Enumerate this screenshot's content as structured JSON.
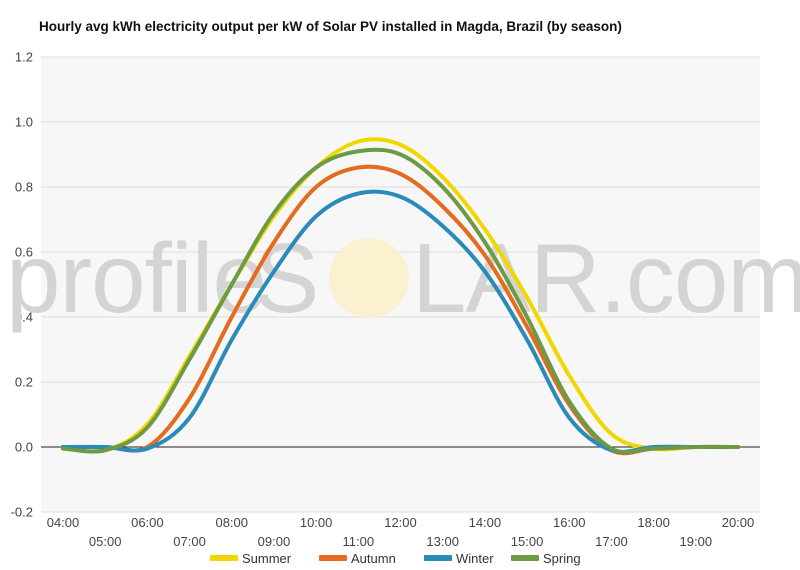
{
  "chart_data": {
    "type": "line",
    "title": "Hourly avg kWh electricity output per kW of Solar PV installed in Magda, Brazil (by season)",
    "xlabel": "",
    "ylabel": "",
    "x": [
      "04:00",
      "05:00",
      "06:00",
      "07:00",
      "08:00",
      "09:00",
      "10:00",
      "11:00",
      "12:00",
      "13:00",
      "14:00",
      "15:00",
      "16:00",
      "17:00",
      "18:00",
      "19:00",
      "20:00"
    ],
    "ylim": [
      -0.2,
      1.2
    ],
    "yticks": [
      "-0.2",
      "0.0",
      "0.2",
      "0.4",
      "0.6",
      "0.8",
      "1.0",
      "1.2"
    ],
    "grid": true,
    "legend_position": "bottom",
    "series": [
      {
        "name": "Summer",
        "color": "#f2d600",
        "values": [
          0,
          -0.01,
          0.07,
          0.28,
          0.5,
          0.71,
          0.86,
          0.94,
          0.93,
          0.83,
          0.67,
          0.46,
          0.22,
          0.04,
          -0.005,
          0,
          0
        ]
      },
      {
        "name": "Autumn",
        "color": "#e46b1f",
        "values": [
          0,
          0,
          0,
          0.15,
          0.4,
          0.63,
          0.8,
          0.86,
          0.84,
          0.74,
          0.59,
          0.37,
          0.13,
          -0.01,
          -0.005,
          0,
          0
        ]
      },
      {
        "name": "Winter",
        "color": "#2a8ab8",
        "values": [
          0,
          0,
          -0.005,
          0.09,
          0.33,
          0.54,
          0.71,
          0.78,
          0.77,
          0.68,
          0.54,
          0.33,
          0.09,
          -0.01,
          0,
          0,
          0
        ]
      },
      {
        "name": "Spring",
        "color": "#6d9a45",
        "values": [
          -0.005,
          -0.01,
          0.06,
          0.27,
          0.5,
          0.72,
          0.86,
          0.91,
          0.9,
          0.8,
          0.63,
          0.4,
          0.14,
          -0.005,
          -0.005,
          0,
          0
        ]
      }
    ]
  },
  "watermark": {
    "left": "profile",
    "right": "LAR.com",
    "s": "S"
  }
}
